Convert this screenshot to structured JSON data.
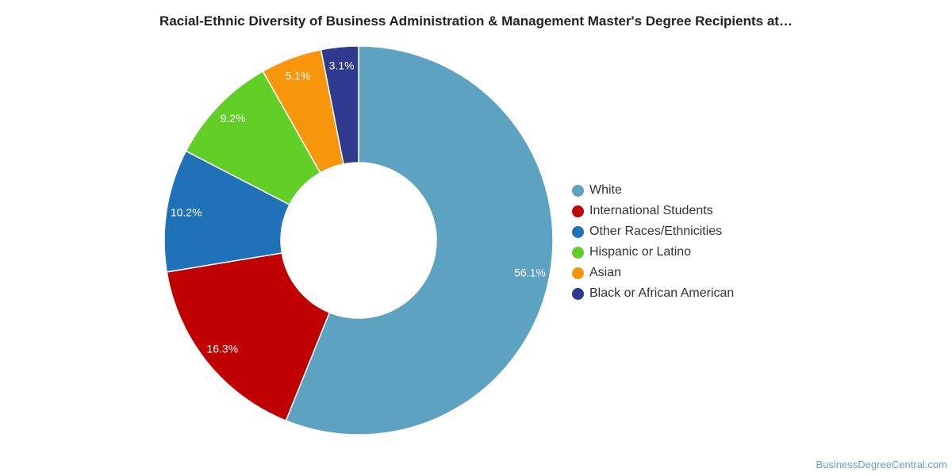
{
  "chart_data": {
    "type": "pie",
    "title": "Racial-Ethnic Diversity of Business Administration & Management Master's Degree Recipients at…",
    "categories": [
      "White",
      "International Students",
      "Other Races/Ethnicities",
      "Hispanic or Latino",
      "Asian",
      "Black or African American"
    ],
    "values": [
      56.1,
      16.3,
      10.2,
      9.2,
      5.1,
      3.1
    ],
    "labels": [
      "56.1%",
      "16.3%",
      "10.2%",
      "9.2%",
      "5.1%",
      "3.1%"
    ],
    "colors": [
      "#5da2c0",
      "#c00000",
      "#1f72b8",
      "#62cf27",
      "#f7960a",
      "#2f3a8f"
    ],
    "donut": true,
    "legend_position": "right"
  },
  "footer": {
    "source": "BusinessDegreeCentral.com"
  }
}
